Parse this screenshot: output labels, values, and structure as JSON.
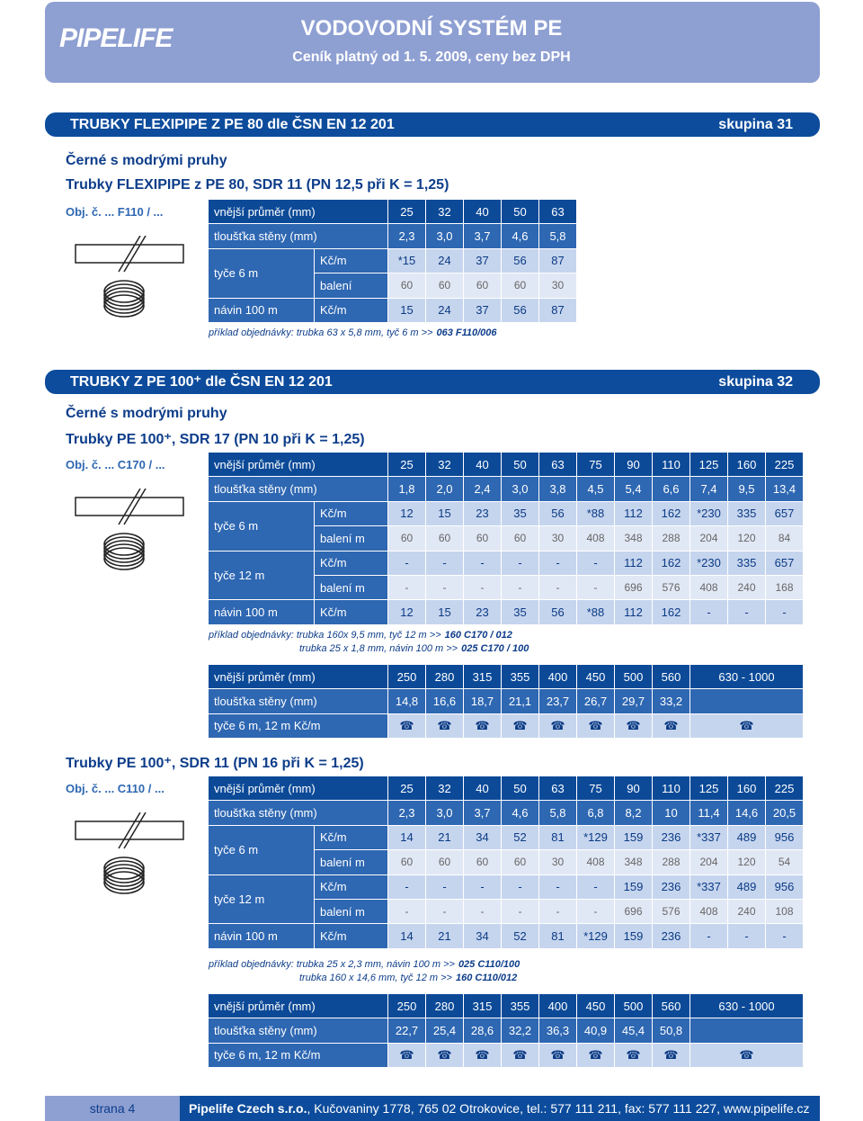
{
  "header": {
    "logo": "PIPELIFE",
    "title": "VODOVODNÍ SYSTÉM PE",
    "subtitle": "Ceník platný od 1. 5. 2009, ceny bez DPH"
  },
  "sections": [
    {
      "title": "TRUBKY FLEXIPIPE Z PE 80 dle ČSN EN 12 201",
      "group": "skupina 31",
      "parts": [
        {
          "heading": "Černé s modrými pruhy",
          "subheading": "Trubky FLEXIPIPE z PE 80, SDR 11 (PN 12,5 při K = 1,25)",
          "order_no": "Obj. č. ... F110 / ...",
          "table": [
            {
              "label": "vnější průměr (mm)",
              "values": [
                "25",
                "32",
                "40",
                "50",
                "63"
              ]
            },
            {
              "label": "tloušťka stěny (mm)",
              "values": [
                "2,3",
                "3,0",
                "3,7",
                "4,6",
                "5,8"
              ]
            },
            {
              "label": "tyče 6 m",
              "rows": [
                {
                  "unit": "Kč/m",
                  "values": [
                    "*15",
                    "24",
                    "37",
                    "56",
                    "87"
                  ]
                },
                {
                  "unit": "balení",
                  "values": [
                    "60",
                    "60",
                    "60",
                    "60",
                    "30"
                  ]
                }
              ]
            },
            {
              "label": "návin 100 m",
              "rows": [
                {
                  "unit": "Kč/m",
                  "values": [
                    "15",
                    "24",
                    "37",
                    "56",
                    "87"
                  ]
                }
              ]
            }
          ],
          "examples": [
            {
              "text": "příklad objednávky: trubka 63 x 5,8 mm, tyč 6 m >>",
              "code": "063 F110/006"
            }
          ]
        }
      ]
    },
    {
      "title": "TRUBKY Z PE 100⁺ dle ČSN EN 12 201",
      "group": "skupina 32",
      "parts": [
        {
          "heading": "Černé s modrými pruhy",
          "subheading": "Trubky PE 100⁺, SDR 17 (PN 10 při K = 1,25)",
          "order_no": "Obj. č. ... C170 / ...",
          "table": [
            {
              "label": "vnější průměr (mm)",
              "values": [
                "25",
                "32",
                "40",
                "50",
                "63",
                "75",
                "90",
                "110",
                "125",
                "160",
                "225"
              ]
            },
            {
              "label": "tloušťka stěny (mm)",
              "values": [
                "1,8",
                "2,0",
                "2,4",
                "3,0",
                "3,8",
                "4,5",
                "5,4",
                "6,6",
                "7,4",
                "9,5",
                "13,4"
              ]
            },
            {
              "label": "tyče 6 m",
              "rows": [
                {
                  "unit": "Kč/m",
                  "values": [
                    "12",
                    "15",
                    "23",
                    "35",
                    "56",
                    "*88",
                    "112",
                    "162",
                    "*230",
                    "335",
                    "657"
                  ]
                },
                {
                  "unit": "balení m",
                  "values": [
                    "60",
                    "60",
                    "60",
                    "60",
                    "30",
                    "408",
                    "348",
                    "288",
                    "204",
                    "120",
                    "84"
                  ]
                }
              ]
            },
            {
              "label": "tyče 12 m",
              "rows": [
                {
                  "unit": "Kč/m",
                  "values": [
                    "-",
                    "-",
                    "-",
                    "-",
                    "-",
                    "-",
                    "112",
                    "162",
                    "*230",
                    "335",
                    "657"
                  ]
                },
                {
                  "unit": "balení m",
                  "values": [
                    "-",
                    "-",
                    "-",
                    "-",
                    "-",
                    "-",
                    "696",
                    "576",
                    "408",
                    "240",
                    "168"
                  ]
                }
              ]
            },
            {
              "label": "návin 100 m",
              "rows": [
                {
                  "unit": "Kč/m",
                  "values": [
                    "12",
                    "15",
                    "23",
                    "35",
                    "56",
                    "*88",
                    "112",
                    "162",
                    "-",
                    "-",
                    "-"
                  ]
                }
              ]
            }
          ],
          "examples": [
            {
              "text": "příklad objednávky: trubka 160x 9,5 mm, tyč 12 m >>",
              "code": "160 C170 / 012"
            },
            {
              "text": "trubka 25 x 1,8 mm, návin 100 m >>",
              "code": "025 C170 / 100"
            }
          ],
          "extended": [
            {
              "label": "vnější průměr (mm)",
              "values": [
                "250",
                "280",
                "315",
                "355",
                "400",
                "450",
                "500",
                "560",
                "630 - 1000"
              ]
            },
            {
              "label": "tloušťka stěny (mm)",
              "values": [
                "14,8",
                "16,6",
                "18,7",
                "21,1",
                "23,7",
                "26,7",
                "29,7",
                "33,2"
              ]
            },
            {
              "label": "tyče 6 m, 12 m Kč/m",
              "values": [
                "☎",
                "☎",
                "☎",
                "☎",
                "☎",
                "☎",
                "☎",
                "☎",
                "☎"
              ]
            }
          ]
        },
        {
          "subheading": "Trubky PE 100⁺, SDR 11 (PN 16 při K = 1,25)",
          "order_no": "Obj. č. ... C110 / ...",
          "table": [
            {
              "label": "vnější průměr (mm)",
              "values": [
                "25",
                "32",
                "40",
                "50",
                "63",
                "75",
                "90",
                "110",
                "125",
                "160",
                "225"
              ]
            },
            {
              "label": "tloušťka stěny (mm)",
              "values": [
                "2,3",
                "3,0",
                "3,7",
                "4,6",
                "5,8",
                "6,8",
                "8,2",
                "10",
                "11,4",
                "14,6",
                "20,5"
              ]
            },
            {
              "label": "tyče 6 m",
              "rows": [
                {
                  "unit": "Kč/m",
                  "values": [
                    "14",
                    "21",
                    "34",
                    "52",
                    "81",
                    "*129",
                    "159",
                    "236",
                    "*337",
                    "489",
                    "956"
                  ]
                },
                {
                  "unit": "balení m",
                  "values": [
                    "60",
                    "60",
                    "60",
                    "60",
                    "30",
                    "408",
                    "348",
                    "288",
                    "204",
                    "120",
                    "54"
                  ]
                }
              ]
            },
            {
              "label": "tyče 12 m",
              "rows": [
                {
                  "unit": "Kč/m",
                  "values": [
                    "-",
                    "-",
                    "-",
                    "-",
                    "-",
                    "-",
                    "159",
                    "236",
                    "*337",
                    "489",
                    "956"
                  ]
                },
                {
                  "unit": "balení m",
                  "values": [
                    "-",
                    "-",
                    "-",
                    "-",
                    "-",
                    "-",
                    "696",
                    "576",
                    "408",
                    "240",
                    "108"
                  ]
                }
              ]
            },
            {
              "label": "návin 100 m",
              "rows": [
                {
                  "unit": "Kč/m",
                  "values": [
                    "14",
                    "21",
                    "34",
                    "52",
                    "81",
                    "*129",
                    "159",
                    "236",
                    "-",
                    "-",
                    "-"
                  ]
                }
              ]
            }
          ],
          "examples": [
            {
              "text": "příklad objednávky: trubka 25 x 2,3 mm, návin 100 m >>",
              "code": "025 C110/100"
            },
            {
              "text": "trubka 160 x 14,6 mm, tyč 12 m >>",
              "code": "160 C110/012"
            }
          ],
          "extended": [
            {
              "label": "vnější průměr (mm)",
              "values": [
                "250",
                "280",
                "315",
                "355",
                "400",
                "450",
                "500",
                "560",
                "630 - 1000"
              ]
            },
            {
              "label": "tloušťka stěny (mm)",
              "values": [
                "22,7",
                "25,4",
                "28,6",
                "32,2",
                "36,3",
                "40,9",
                "45,4",
                "50,8"
              ]
            },
            {
              "label": "tyče 6 m, 12 m Kč/m",
              "values": [
                "☎",
                "☎",
                "☎",
                "☎",
                "☎",
                "☎",
                "☎",
                "☎",
                "☎"
              ]
            }
          ]
        }
      ]
    }
  ],
  "footer": {
    "page": "strana 4",
    "company": "Pipelife Czech s.r.o.",
    "address": ", Kučovaniny 1778, 765 02 Otrokovice, tel.: 577 111 211, fax: 577 111 227, www.pipelife.cz"
  }
}
